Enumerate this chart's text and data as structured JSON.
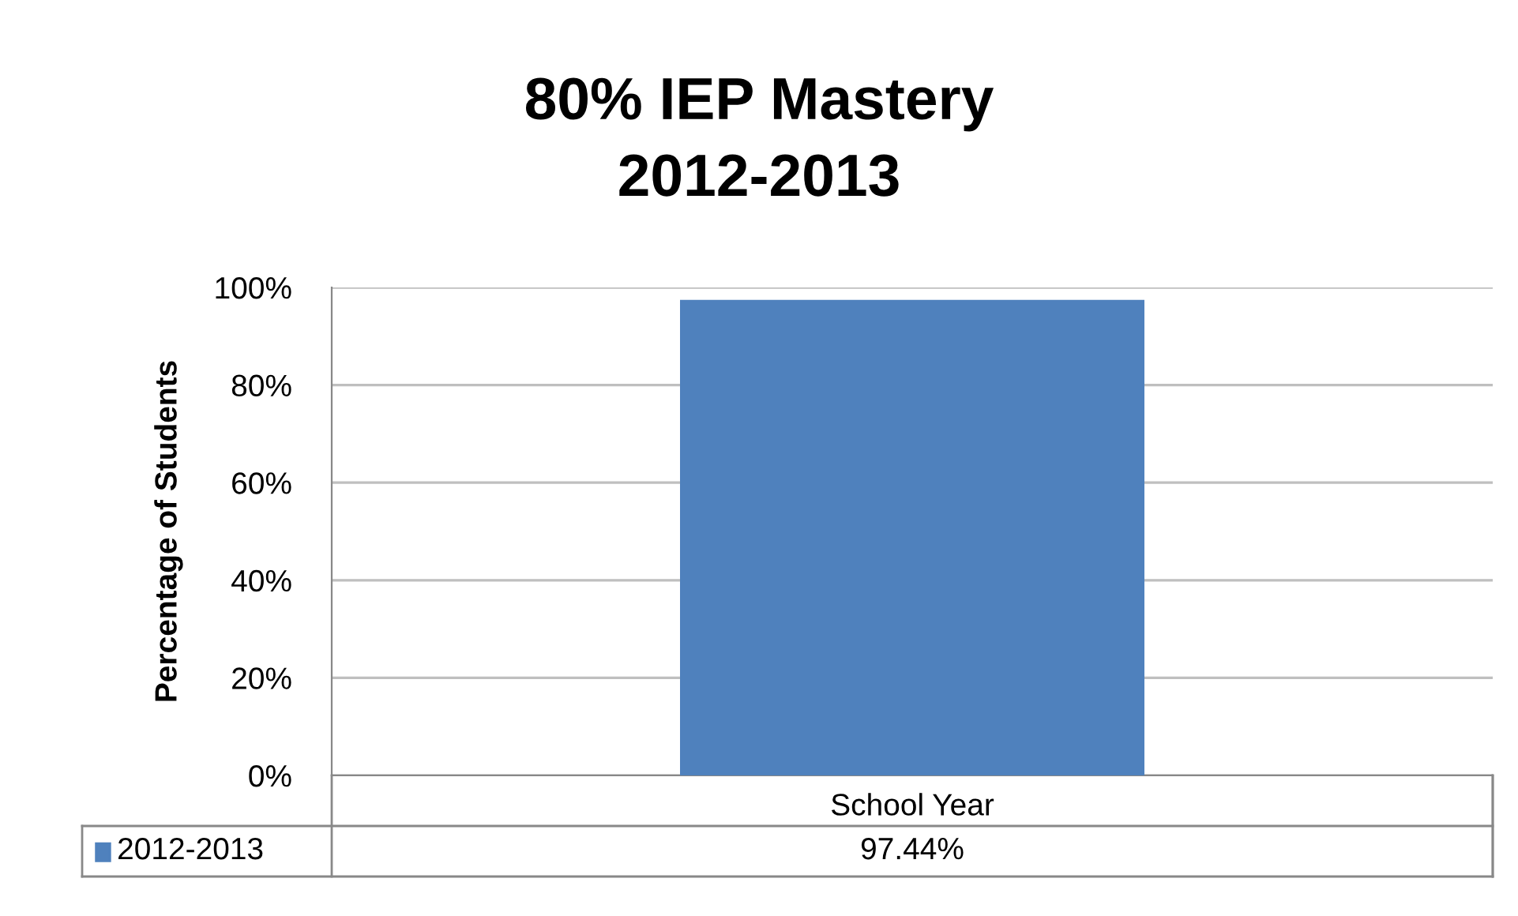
{
  "chart_data": {
    "type": "bar",
    "title": "80% IEP Mastery\n2012-2013",
    "ylabel": "Percentage of Students",
    "categories": [
      "School Year"
    ],
    "series": [
      {
        "name": "2012-2013",
        "color": "#4f81bd",
        "values": [
          97.44
        ],
        "value_labels": [
          "97.44%"
        ]
      }
    ],
    "ylim": [
      0,
      100
    ],
    "yticks": [
      {
        "value": 0,
        "label": "0%"
      },
      {
        "value": 20,
        "label": "20%"
      },
      {
        "value": 40,
        "label": "40%"
      },
      {
        "value": 60,
        "label": "60%"
      },
      {
        "value": 80,
        "label": "80%"
      },
      {
        "value": 100,
        "label": "100%"
      }
    ],
    "grid": "y",
    "legend": "bottom left"
  }
}
